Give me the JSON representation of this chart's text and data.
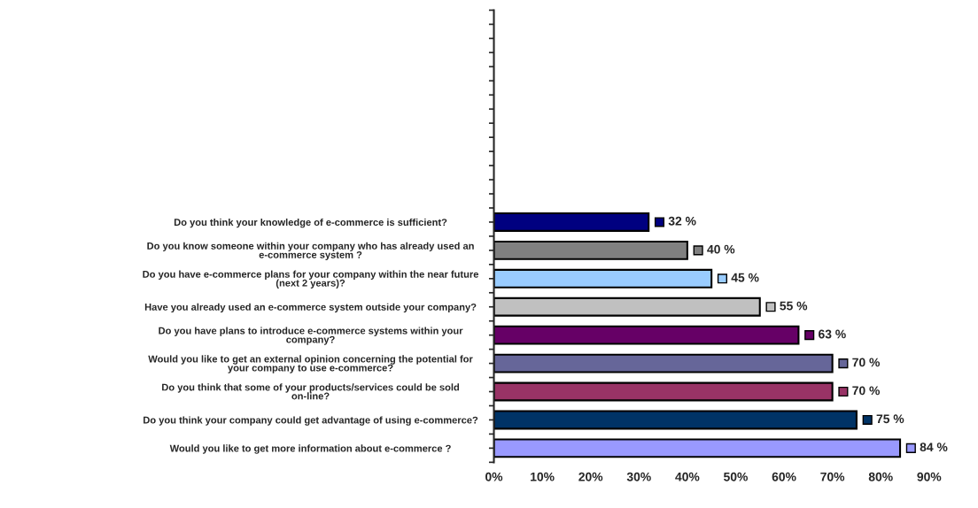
{
  "chart_data": {
    "type": "bar",
    "orientation": "horizontal",
    "categories": [
      null,
      null,
      null,
      null,
      null,
      null,
      null,
      "Do you think your knowledge of e-commerce is sufficient?",
      "Do you know someone within your company who has already used an e-commerce system ?",
      "Do you have e-commerce plans for your company within the near future (next 2 years)?",
      "Have you already used an e-commerce system outside your company?",
      "Do you have plans to introduce e-commerce systems within your company?",
      "Would you like to get an external opinion concerning the potential for your company to use e-commerce?",
      "Do you think that some of your products/services could be sold on-line?",
      "Do you think your company could get advantage of using e-commerce?",
      "Would you like to get more information about e-commerce ?"
    ],
    "values": [
      null,
      null,
      null,
      null,
      null,
      null,
      null,
      32,
      40,
      45,
      55,
      63,
      70,
      70,
      75,
      84
    ],
    "colors": [
      "#ffffff",
      "#ffffff",
      "#ffffff",
      "#ffffff",
      "#ffffff",
      "#ffffff",
      "#ffffff",
      "#000080",
      "#808080",
      "#99ccff",
      "#c0c0c0",
      "#660066",
      "#666699",
      "#993366",
      "#003366",
      "#9999ff"
    ],
    "value_labels": [
      null,
      null,
      null,
      null,
      null,
      null,
      null,
      "32 %",
      "40 %",
      "45 %",
      "55 %",
      "63 %",
      "70 %",
      "70 %",
      "75 %",
      "84 %"
    ],
    "xlim": [
      0,
      90
    ],
    "xticks": [
      {
        "value": 0,
        "label": "0%"
      },
      {
        "value": 10,
        "label": "10%"
      },
      {
        "value": 20,
        "label": "20%"
      },
      {
        "value": 30,
        "label": "30%"
      },
      {
        "value": 40,
        "label": "40%"
      },
      {
        "value": 50,
        "label": "50%"
      },
      {
        "value": 60,
        "label": "60%"
      },
      {
        "value": 70,
        "label": "70%"
      },
      {
        "value": 80,
        "label": "80%"
      },
      {
        "value": 90,
        "label": "90%"
      }
    ],
    "grid": false,
    "legend": false
  }
}
